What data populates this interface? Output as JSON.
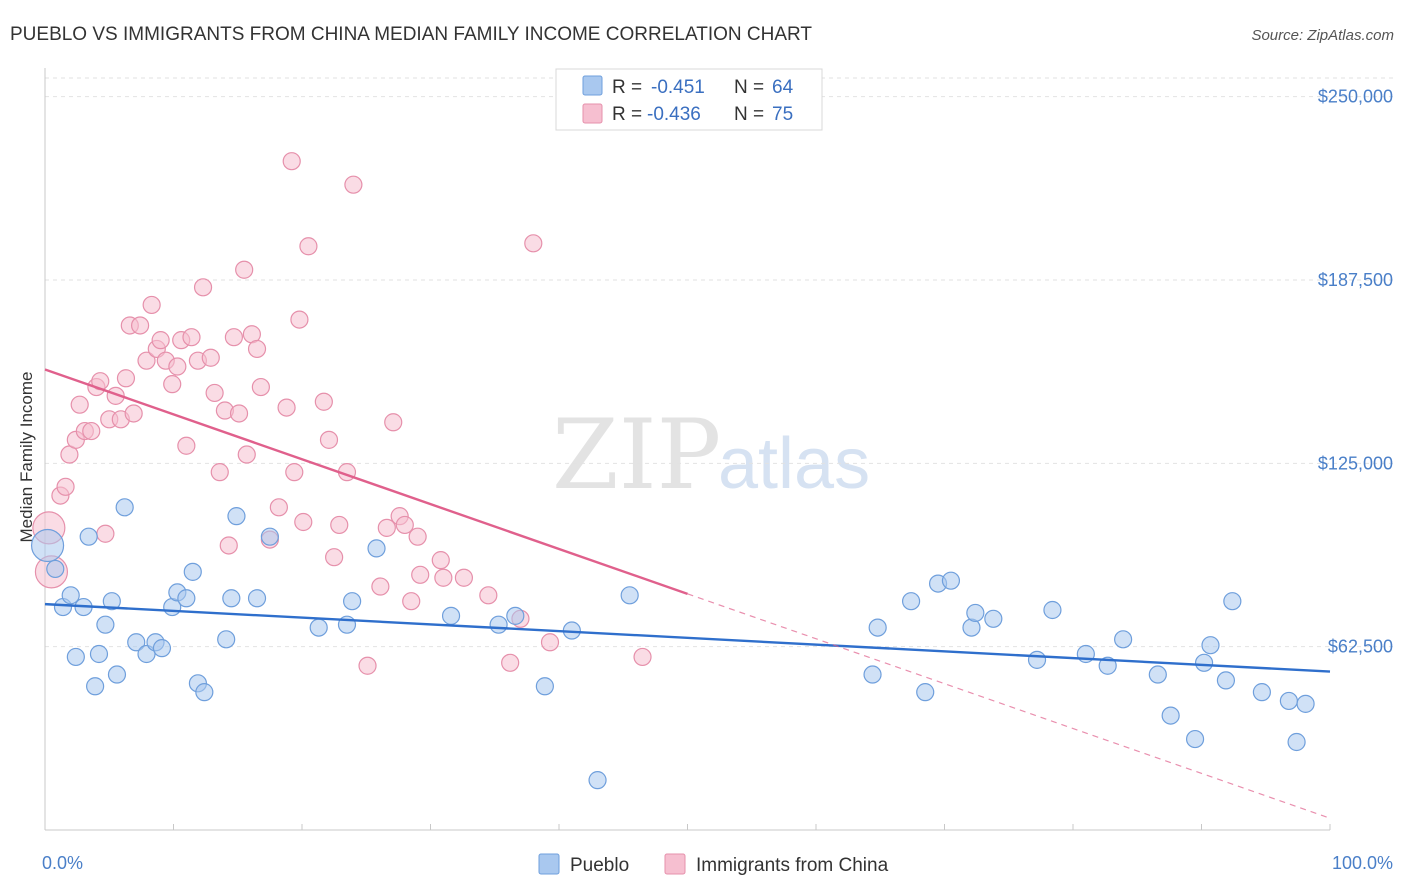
{
  "title": "PUEBLO VS IMMIGRANTS FROM CHINA MEDIAN FAMILY INCOME CORRELATION CHART",
  "source": "Source: ZipAtlas.com",
  "watermark": {
    "zip": "ZIP",
    "atlas": "atlas"
  },
  "legend": {
    "rows": [
      {
        "r_label": "R =",
        "r_value": "-0.451",
        "n_label": "N =",
        "n_value": "64",
        "color": "#a9c8ef",
        "stroke": "#6f9fdc"
      },
      {
        "r_label": "R =",
        "r_value": "-0.436",
        "n_label": "N =",
        "n_value": "75",
        "color": "#f6bfd0",
        "stroke": "#e690ab"
      }
    ]
  },
  "chart_data": {
    "type": "scatter",
    "xlabel": "",
    "ylabel": "Median Family Income",
    "xlim": [
      0,
      100
    ],
    "ylim": [
      0,
      262500
    ],
    "x_tick_labels": [
      "0.0%",
      "100.0%"
    ],
    "y_ticks": [
      62500,
      125000,
      187500,
      250000
    ],
    "y_tick_labels": [
      "$62,500",
      "$125,000",
      "$187,500",
      "$250,000"
    ],
    "grid": "horizontal dashed",
    "series": [
      {
        "name": "Pueblo",
        "color": "#a9c8ef",
        "stroke": "#6f9fdc",
        "line_color": "#2f6fcc",
        "trend": {
          "x0": 0,
          "y0": 77000,
          "x1": 100,
          "y1": 54000,
          "dashed_from": 100
        },
        "points": [
          [
            0.2,
            97000
          ],
          [
            0.8,
            89000
          ],
          [
            1.4,
            76000
          ],
          [
            2.0,
            80000
          ],
          [
            2.4,
            59000
          ],
          [
            3.0,
            76000
          ],
          [
            3.4,
            100000
          ],
          [
            3.9,
            49000
          ],
          [
            4.2,
            60000
          ],
          [
            4.7,
            70000
          ],
          [
            5.2,
            78000
          ],
          [
            5.6,
            53000
          ],
          [
            6.2,
            110000
          ],
          [
            7.1,
            64000
          ],
          [
            7.9,
            60000
          ],
          [
            8.6,
            64000
          ],
          [
            9.1,
            62000
          ],
          [
            9.9,
            76000
          ],
          [
            10.3,
            81000
          ],
          [
            11.0,
            79000
          ],
          [
            11.5,
            88000
          ],
          [
            11.9,
            50000
          ],
          [
            12.4,
            47000
          ],
          [
            14.1,
            65000
          ],
          [
            14.5,
            79000
          ],
          [
            14.9,
            107000
          ],
          [
            16.5,
            79000
          ],
          [
            17.5,
            100000
          ],
          [
            21.3,
            69000
          ],
          [
            23.5,
            70000
          ],
          [
            23.9,
            78000
          ],
          [
            25.8,
            96000
          ],
          [
            31.6,
            73000
          ],
          [
            35.3,
            70000
          ],
          [
            36.6,
            73000
          ],
          [
            38.9,
            49000
          ],
          [
            41.0,
            68000
          ],
          [
            43.0,
            17000
          ],
          [
            45.5,
            80000
          ],
          [
            64.4,
            53000
          ],
          [
            64.8,
            69000
          ],
          [
            67.4,
            78000
          ],
          [
            68.5,
            47000
          ],
          [
            69.5,
            84000
          ],
          [
            70.5,
            85000
          ],
          [
            72.1,
            69000
          ],
          [
            72.4,
            74000
          ],
          [
            73.8,
            72000
          ],
          [
            77.2,
            58000
          ],
          [
            78.4,
            75000
          ],
          [
            81.0,
            60000
          ],
          [
            82.7,
            56000
          ],
          [
            83.9,
            65000
          ],
          [
            86.6,
            53000
          ],
          [
            87.6,
            39000
          ],
          [
            89.5,
            31000
          ],
          [
            90.2,
            57000
          ],
          [
            90.7,
            63000
          ],
          [
            91.9,
            51000
          ],
          [
            92.4,
            78000
          ],
          [
            94.7,
            47000
          ],
          [
            96.8,
            44000
          ],
          [
            97.4,
            30000
          ],
          [
            98.1,
            43000
          ]
        ]
      },
      {
        "name": "Immigrants from China",
        "color": "#f6bfd0",
        "stroke": "#e690ab",
        "line_color": "#e0608c",
        "trend": {
          "x0": 0,
          "y0": 157000,
          "x1": 100,
          "y1": 4000,
          "dashed_from": 50
        },
        "points": [
          [
            0.3,
            103000
          ],
          [
            0.5,
            88000
          ],
          [
            1.2,
            114000
          ],
          [
            1.6,
            117000
          ],
          [
            1.9,
            128000
          ],
          [
            2.4,
            133000
          ],
          [
            2.7,
            145000
          ],
          [
            3.1,
            136000
          ],
          [
            3.6,
            136000
          ],
          [
            4.0,
            151000
          ],
          [
            4.3,
            153000
          ],
          [
            4.7,
            101000
          ],
          [
            5.0,
            140000
          ],
          [
            5.5,
            148000
          ],
          [
            5.9,
            140000
          ],
          [
            6.3,
            154000
          ],
          [
            6.6,
            172000
          ],
          [
            6.9,
            142000
          ],
          [
            7.4,
            172000
          ],
          [
            7.9,
            160000
          ],
          [
            8.3,
            179000
          ],
          [
            8.7,
            164000
          ],
          [
            9.0,
            167000
          ],
          [
            9.4,
            160000
          ],
          [
            9.9,
            152000
          ],
          [
            10.3,
            158000
          ],
          [
            10.6,
            167000
          ],
          [
            11.0,
            131000
          ],
          [
            11.4,
            168000
          ],
          [
            11.9,
            160000
          ],
          [
            12.3,
            185000
          ],
          [
            12.9,
            161000
          ],
          [
            13.2,
            149000
          ],
          [
            13.6,
            122000
          ],
          [
            14.0,
            143000
          ],
          [
            14.3,
            97000
          ],
          [
            14.7,
            168000
          ],
          [
            15.1,
            142000
          ],
          [
            15.5,
            191000
          ],
          [
            15.7,
            128000
          ],
          [
            16.1,
            169000
          ],
          [
            16.5,
            164000
          ],
          [
            16.8,
            151000
          ],
          [
            17.5,
            99000
          ],
          [
            18.2,
            110000
          ],
          [
            18.8,
            144000
          ],
          [
            19.2,
            228000
          ],
          [
            19.4,
            122000
          ],
          [
            19.8,
            174000
          ],
          [
            20.1,
            105000
          ],
          [
            20.5,
            199000
          ],
          [
            21.7,
            146000
          ],
          [
            22.1,
            133000
          ],
          [
            22.5,
            93000
          ],
          [
            22.9,
            104000
          ],
          [
            23.5,
            122000
          ],
          [
            24.0,
            220000
          ],
          [
            25.1,
            56000
          ],
          [
            26.1,
            83000
          ],
          [
            26.6,
            103000
          ],
          [
            27.1,
            139000
          ],
          [
            27.6,
            107000
          ],
          [
            28.0,
            104000
          ],
          [
            28.5,
            78000
          ],
          [
            29.0,
            100000
          ],
          [
            29.2,
            87000
          ],
          [
            30.8,
            92000
          ],
          [
            31.0,
            86000
          ],
          [
            32.6,
            86000
          ],
          [
            34.5,
            80000
          ],
          [
            36.2,
            57000
          ],
          [
            37.0,
            72000
          ],
          [
            38.0,
            200000
          ],
          [
            39.3,
            64000
          ],
          [
            46.5,
            59000
          ]
        ]
      }
    ]
  }
}
